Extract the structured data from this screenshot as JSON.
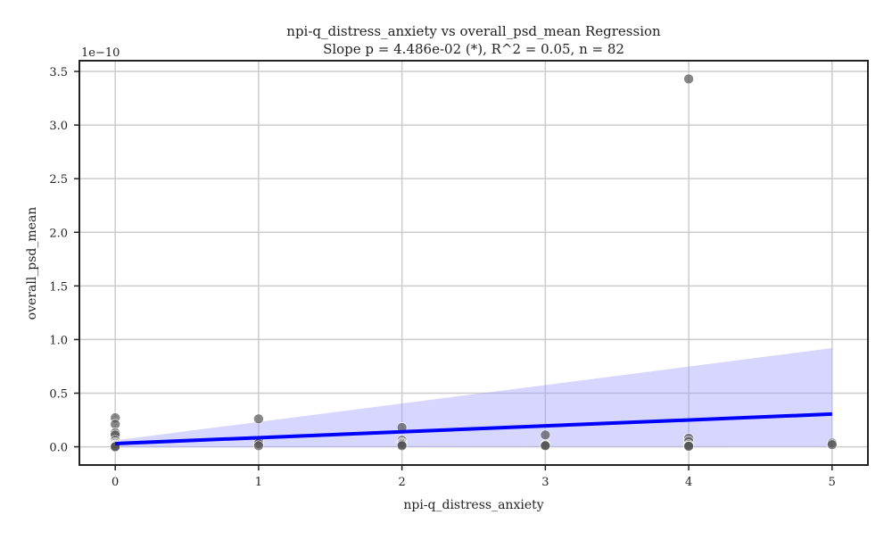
{
  "chart_data": {
    "type": "scatter",
    "title": "npi-q_distress_anxiety vs overall_psd_mean Regression",
    "subtitle": "Slope p = 4.486e-02 (*), R^2 = 0.05, n = 82",
    "xlabel": "npi-q_distress_anxiety",
    "ylabel": "overall_psd_mean",
    "y_scale_label": "1e−10",
    "y_scale_factor": 1e-10,
    "xlim": [
      -0.25,
      5.25
    ],
    "ylim": [
      -0.17,
      3.6
    ],
    "xticks": [
      0,
      1,
      2,
      3,
      4,
      5
    ],
    "xtick_labels": [
      "0",
      "1",
      "2",
      "3",
      "4",
      "5"
    ],
    "yticks": [
      0.0,
      0.5,
      1.0,
      1.5,
      2.0,
      2.5,
      3.0,
      3.5
    ],
    "ytick_labels": [
      "0.0",
      "0.5",
      "1.0",
      "1.5",
      "2.0",
      "2.5",
      "3.0",
      "3.5"
    ],
    "grid": true,
    "points": [
      {
        "x": 0,
        "y": 0.27
      },
      {
        "x": 0,
        "y": 0.21
      },
      {
        "x": 0,
        "y": 0.13
      },
      {
        "x": 0,
        "y": 0.11
      },
      {
        "x": 0,
        "y": 0.06
      },
      {
        "x": 0,
        "y": 0.04
      },
      {
        "x": 0,
        "y": 0.03
      },
      {
        "x": 0,
        "y": 0.02
      },
      {
        "x": 0,
        "y": 0.015
      },
      {
        "x": 0,
        "y": 0.01
      },
      {
        "x": 0,
        "y": 0.005
      },
      {
        "x": 0,
        "y": 0.0
      },
      {
        "x": 1,
        "y": 0.26
      },
      {
        "x": 1,
        "y": 0.06
      },
      {
        "x": 1,
        "y": 0.03
      },
      {
        "x": 1,
        "y": 0.01
      },
      {
        "x": 2,
        "y": 0.18
      },
      {
        "x": 2,
        "y": 0.06
      },
      {
        "x": 2,
        "y": 0.04
      },
      {
        "x": 2,
        "y": 0.03
      },
      {
        "x": 2,
        "y": 0.02
      },
      {
        "x": 2,
        "y": 0.01
      },
      {
        "x": 3,
        "y": 0.11
      },
      {
        "x": 3,
        "y": 0.02
      },
      {
        "x": 3,
        "y": 0.015
      },
      {
        "x": 3,
        "y": 0.01
      },
      {
        "x": 4,
        "y": 3.43
      },
      {
        "x": 4,
        "y": 0.08
      },
      {
        "x": 4,
        "y": 0.05
      },
      {
        "x": 4,
        "y": 0.02
      },
      {
        "x": 4,
        "y": 0.01
      },
      {
        "x": 4,
        "y": 0.005
      },
      {
        "x": 5,
        "y": 0.035
      },
      {
        "x": 5,
        "y": 0.02
      }
    ],
    "regression_line": {
      "x": [
        0,
        5
      ],
      "y": [
        0.03,
        0.305
      ]
    },
    "confidence_band": {
      "x": [
        0,
        5
      ],
      "upper": [
        0.06,
        0.92
      ],
      "lower": [
        -0.005,
        0.0
      ]
    },
    "colors": {
      "points": "#555555",
      "line": "#0000ff",
      "band": "#9999ff",
      "grid": "#cccccc",
      "frame": "#222222"
    }
  }
}
